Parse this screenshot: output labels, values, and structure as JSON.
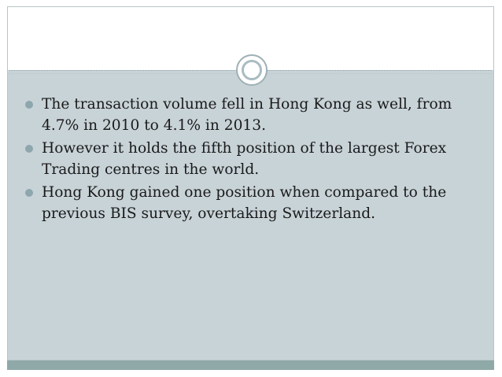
{
  "colors": {
    "frame_background": "#c8d3d8",
    "header_background": "#ffffff",
    "bullet_color": "#8ea6ad",
    "footer_bar": "#8ea9a8",
    "text": "#1a1a1a"
  },
  "bullets": [
    {
      "text": "The transaction volume fell in Hong Kong as well, from 4.7% in 2010 to 4.1% in 2013."
    },
    {
      "text": "However it holds the fifth position of the largest Forex Trading centres in the world."
    },
    {
      "text": " Hong Kong gained one position when compared to the previous BIS survey, overtaking Switzerland."
    }
  ]
}
